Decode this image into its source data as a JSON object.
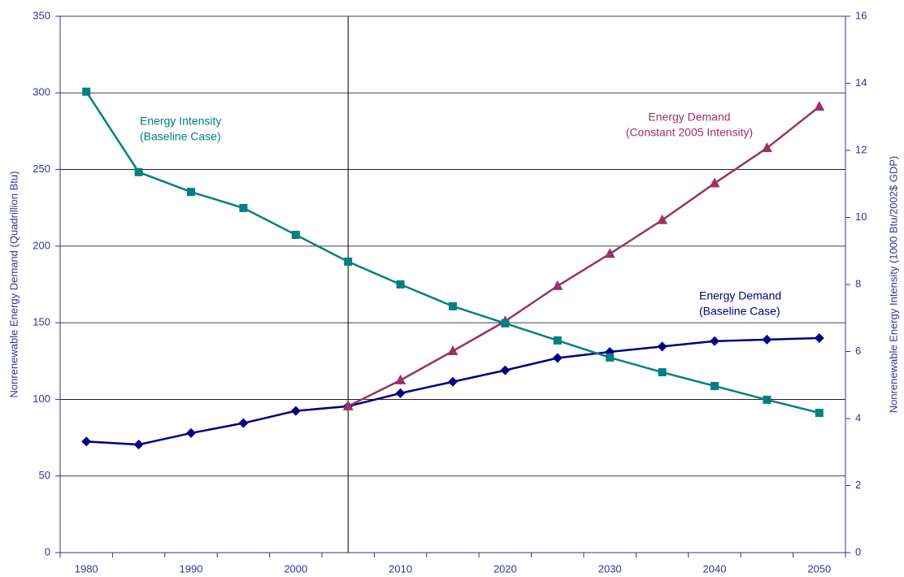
{
  "chart_data": {
    "type": "line",
    "ylabel": "Nonrenewable Energy Demand (Quadrillion Btu)",
    "y2label": "Nonrenewable Energy Intensity (1000 Btu/2002$ GDP)",
    "categories": [
      "1980",
      null,
      "1990",
      null,
      "2000",
      null,
      "2010",
      null,
      "2020",
      null,
      "2030",
      null,
      "2040",
      null,
      "2050"
    ],
    "ylim": [
      0,
      350
    ],
    "yticks": [
      0,
      50,
      100,
      150,
      200,
      250,
      300,
      350
    ],
    "y2lim": [
      0,
      16
    ],
    "y2ticks": [
      0,
      2,
      4,
      6,
      8,
      10,
      12,
      14,
      16
    ],
    "grid": true,
    "series": [
      {
        "label": [
          "Energy Demand",
          "(Baseline Case)"
        ],
        "color": "#000080",
        "marker": "diamond",
        "values": [
          72.5,
          70.5,
          78,
          84.5,
          92.5,
          95.5,
          104,
          111.5,
          119,
          127,
          131,
          134.5,
          138,
          139,
          140
        ]
      },
      {
        "label": [
          "Energy Demand",
          "(Constant 2005 Intensity)"
        ],
        "color": "#993366",
        "marker": "triangle",
        "values": [
          null,
          null,
          null,
          null,
          null,
          95.5,
          112.5,
          131.5,
          151,
          174,
          195,
          217,
          241,
          264,
          291
        ]
      },
      {
        "label": [
          "Energy Intensity",
          "(Baseline Case)"
        ],
        "color": "#008080",
        "marker": "square",
        "axis": "y2",
        "values": [
          13.75,
          11.35,
          10.76,
          10.28,
          9.48,
          8.68,
          8.0,
          7.35,
          6.84,
          6.33,
          5.82,
          5.38,
          4.97,
          4.56,
          4.17
        ]
      }
    ]
  }
}
